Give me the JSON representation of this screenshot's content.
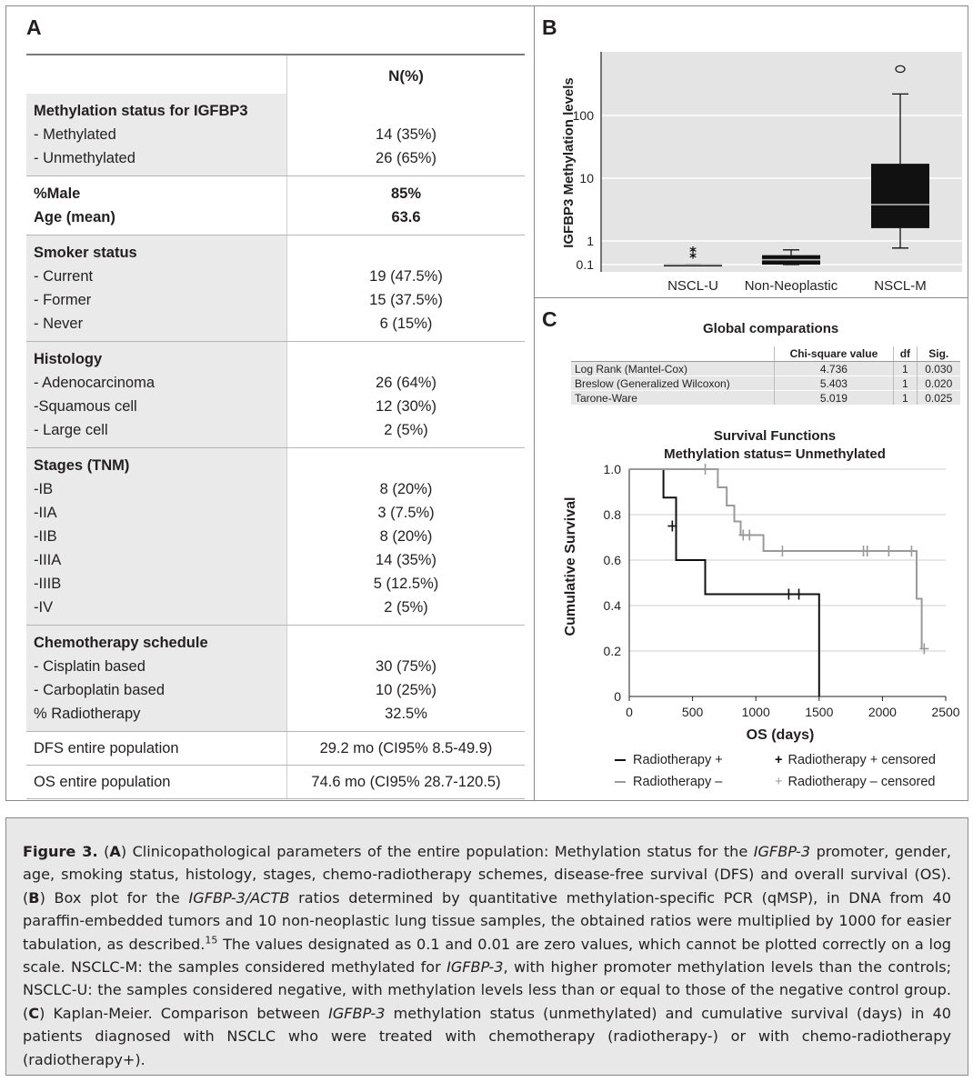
{
  "panelA": {
    "label": "A",
    "column_header": "N(%)",
    "sections": [
      {
        "title": "Methylation status for IGFBP3",
        "rows": [
          [
            "- Methylated",
            "14 (35%)"
          ],
          [
            "- Unmethylated",
            "26 (65%)"
          ]
        ]
      },
      {
        "title": "",
        "rows": [
          [
            "%Male",
            "85%"
          ],
          [
            "Age (mean)",
            "63.6"
          ]
        ],
        "bold": true
      },
      {
        "title": "Smoker status",
        "rows": [
          [
            "- Current",
            "19 (47.5%)"
          ],
          [
            "- Former",
            "15 (37.5%)"
          ],
          [
            "- Never",
            "6 (15%)"
          ]
        ]
      },
      {
        "title": "Histology",
        "rows": [
          [
            "- Adenocarcinoma",
            "26 (64%)"
          ],
          [
            "-Squamous cell",
            "12 (30%)"
          ],
          [
            "- Large cell",
            "2 (5%)"
          ]
        ]
      },
      {
        "title": "Stages (TNM)",
        "rows": [
          [
            "-IB",
            "8 (20%)"
          ],
          [
            "-IIA",
            "3 (7.5%)"
          ],
          [
            "-IIB",
            "8 (20%)"
          ],
          [
            "-IIIA",
            "14 (35%)"
          ],
          [
            "-IIIB",
            "5 (12.5%)"
          ],
          [
            "-IV",
            "2 (5%)"
          ]
        ]
      },
      {
        "title": "Chemotherapy schedule",
        "rows": [
          [
            "- Cisplatin based",
            "30 (75%)"
          ],
          [
            "- Carboplatin based",
            "10 (25%)"
          ],
          [
            "% Radiotherapy",
            "32.5%"
          ]
        ]
      }
    ],
    "footer_rows": [
      [
        "DFS entire population",
        "29.2 mo (CI95% 8.5-49.9)"
      ],
      [
        "OS entire population",
        "74.6 mo (CI95% 28.7-120.5)"
      ]
    ]
  },
  "panelB": {
    "label": "B",
    "ylabel": "IGFBP3 Methylation levels",
    "yticks": [
      "100",
      "10",
      "1",
      "0.1"
    ],
    "categories": [
      "NSCL-U",
      "Non-Neoplastic",
      "NSCL-M"
    ]
  },
  "panelC": {
    "label": "C",
    "table_title": "Global comparations",
    "table_headers": [
      "",
      "Chi-square value",
      "df",
      "Sig."
    ],
    "table_rows": [
      [
        "Log Rank (Mantel-Cox)",
        "4.736",
        "1",
        "0.030"
      ],
      [
        "Breslow (Generalized Wilcoxon)",
        "5.403",
        "1",
        "0.020"
      ],
      [
        "Tarone-Ware",
        "5.019",
        "1",
        "0.025"
      ]
    ],
    "legend": {
      "rt_plus": "Radiotherapy +",
      "rt_plus_c": "Radiotherapy + censored",
      "rt_minus": "Radiotherapy –",
      "rt_minus_c": "Radiotherapy – censored",
      "colors": {
        "plus": "#111111",
        "minus": "#9a9a9a"
      }
    }
  },
  "chart_data": [
    {
      "type": "box",
      "panel": "B",
      "title": "",
      "ylabel": "IGFBP3 Methylation levels",
      "yscale": "log",
      "yticks": [
        0.1,
        1,
        10,
        100
      ],
      "categories": [
        "NSCL-U",
        "Non-Neoplastic",
        "NSCL-M"
      ],
      "boxes": [
        {
          "name": "NSCL-U",
          "q1": 0.1,
          "median": 0.1,
          "q3": 0.1,
          "whisker_low": 0.1,
          "whisker_high": 0.1,
          "outliers": [
            0.45,
            0.25
          ],
          "outlier_marker": "star"
        },
        {
          "name": "Non-Neoplastic",
          "q1": 0.1,
          "median": 0.16,
          "q3": 0.25,
          "whisker_low": 0.1,
          "whisker_high": 0.42,
          "outliers": []
        },
        {
          "name": "NSCL-M",
          "q1": 1.6,
          "median": 3.8,
          "q3": 17,
          "whisker_low": 0.5,
          "whisker_high": 220,
          "outliers": [
            550
          ],
          "outlier_marker": "circle"
        }
      ]
    },
    {
      "type": "line",
      "subtype": "kaplan-meier",
      "panel": "C",
      "title": "Survival Functions",
      "subtitle": "Methylation status= Unmethylated",
      "xlabel": "OS (days)",
      "ylabel": "Cumulative Survival",
      "xlim": [
        0,
        2500
      ],
      "ylim": [
        0,
        1.0
      ],
      "xticks": [
        0,
        500,
        1000,
        1500,
        2000,
        2500
      ],
      "yticks": [
        0,
        0.2,
        0.4,
        0.6,
        0.8,
        1.0
      ],
      "series": [
        {
          "name": "Radiotherapy +",
          "color": "#111111",
          "steps": [
            [
              0,
              1.0
            ],
            [
              270,
              1.0
            ],
            [
              270,
              0.875
            ],
            [
              370,
              0.875
            ],
            [
              370,
              0.6
            ],
            [
              600,
              0.6
            ],
            [
              600,
              0.45
            ],
            [
              1500,
              0.45
            ],
            [
              1500,
              0.0
            ]
          ],
          "censored": [
            [
              340,
              0.75
            ],
            [
              1260,
              0.45
            ],
            [
              1340,
              0.45
            ]
          ]
        },
        {
          "name": "Radiotherapy –",
          "color": "#9a9a9a",
          "steps": [
            [
              0,
              1.0
            ],
            [
              700,
              1.0
            ],
            [
              700,
              0.92
            ],
            [
              770,
              0.92
            ],
            [
              770,
              0.84
            ],
            [
              830,
              0.84
            ],
            [
              830,
              0.77
            ],
            [
              880,
              0.77
            ],
            [
              880,
              0.71
            ],
            [
              1060,
              0.71
            ],
            [
              1060,
              0.64
            ],
            [
              2270,
              0.64
            ],
            [
              2270,
              0.43
            ],
            [
              2310,
              0.43
            ],
            [
              2310,
              0.21
            ]
          ],
          "censored": [
            [
              600,
              1.0
            ],
            [
              900,
              0.71
            ],
            [
              950,
              0.71
            ],
            [
              1210,
              0.64
            ],
            [
              1850,
              0.64
            ],
            [
              1880,
              0.64
            ],
            [
              2050,
              0.64
            ],
            [
              2230,
              0.64
            ],
            [
              2330,
              0.21
            ]
          ]
        }
      ]
    }
  ]
}
